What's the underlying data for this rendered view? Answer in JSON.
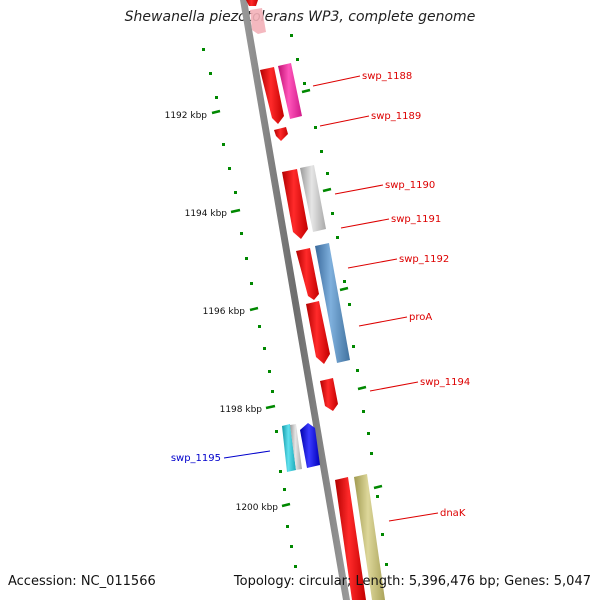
{
  "title": "Shewanella piezotolerans WP3, complete genome",
  "footer": {
    "accession": "Accession: NC_011566",
    "summary": "Topology: circular; Length: 5,396,476 bp; Genes: 5,047"
  },
  "ticks": [
    {
      "label": "1192 kbp"
    },
    {
      "label": "1194 kbp"
    },
    {
      "label": "1196 kbp"
    },
    {
      "label": "1198 kbp"
    },
    {
      "label": "1200 kbp"
    }
  ],
  "genes": [
    {
      "name": "swp_1188",
      "color": "#dd0000"
    },
    {
      "name": "swp_1189",
      "color": "#dd0000"
    },
    {
      "name": "swp_1190",
      "color": "#dd0000"
    },
    {
      "name": "swp_1191",
      "color": "#dd0000"
    },
    {
      "name": "swp_1192",
      "color": "#dd0000"
    },
    {
      "name": "proA",
      "color": "#dd0000"
    },
    {
      "name": "swp_1194",
      "color": "#dd0000"
    },
    {
      "name": "swp_1195",
      "color": "#0000cc"
    },
    {
      "name": "dnaK",
      "color": "#dd0000"
    }
  ],
  "colors": {
    "backbone": "#888888",
    "tick": "#008800",
    "forward_gene": "#ee0000",
    "magenta_feature": "#ee2299",
    "gray_feature": "#bbbbbb",
    "steelblue_feature": "#4d82b8",
    "cyan_feature": "#22bbcc",
    "blue_gene": "#0000ee",
    "khaki_feature": "#bdb76b"
  }
}
